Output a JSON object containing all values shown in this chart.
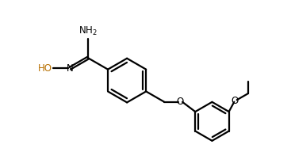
{
  "bg_color": "#ffffff",
  "line_color": "#000000",
  "ho_color": "#b87000",
  "figsize": [
    3.67,
    1.92
  ],
  "dpi": 100,
  "lw": 1.6,
  "font_size": 8.5,
  "xlim": [
    -1.0,
    11.5
  ],
  "ylim": [
    -4.5,
    4.0
  ]
}
